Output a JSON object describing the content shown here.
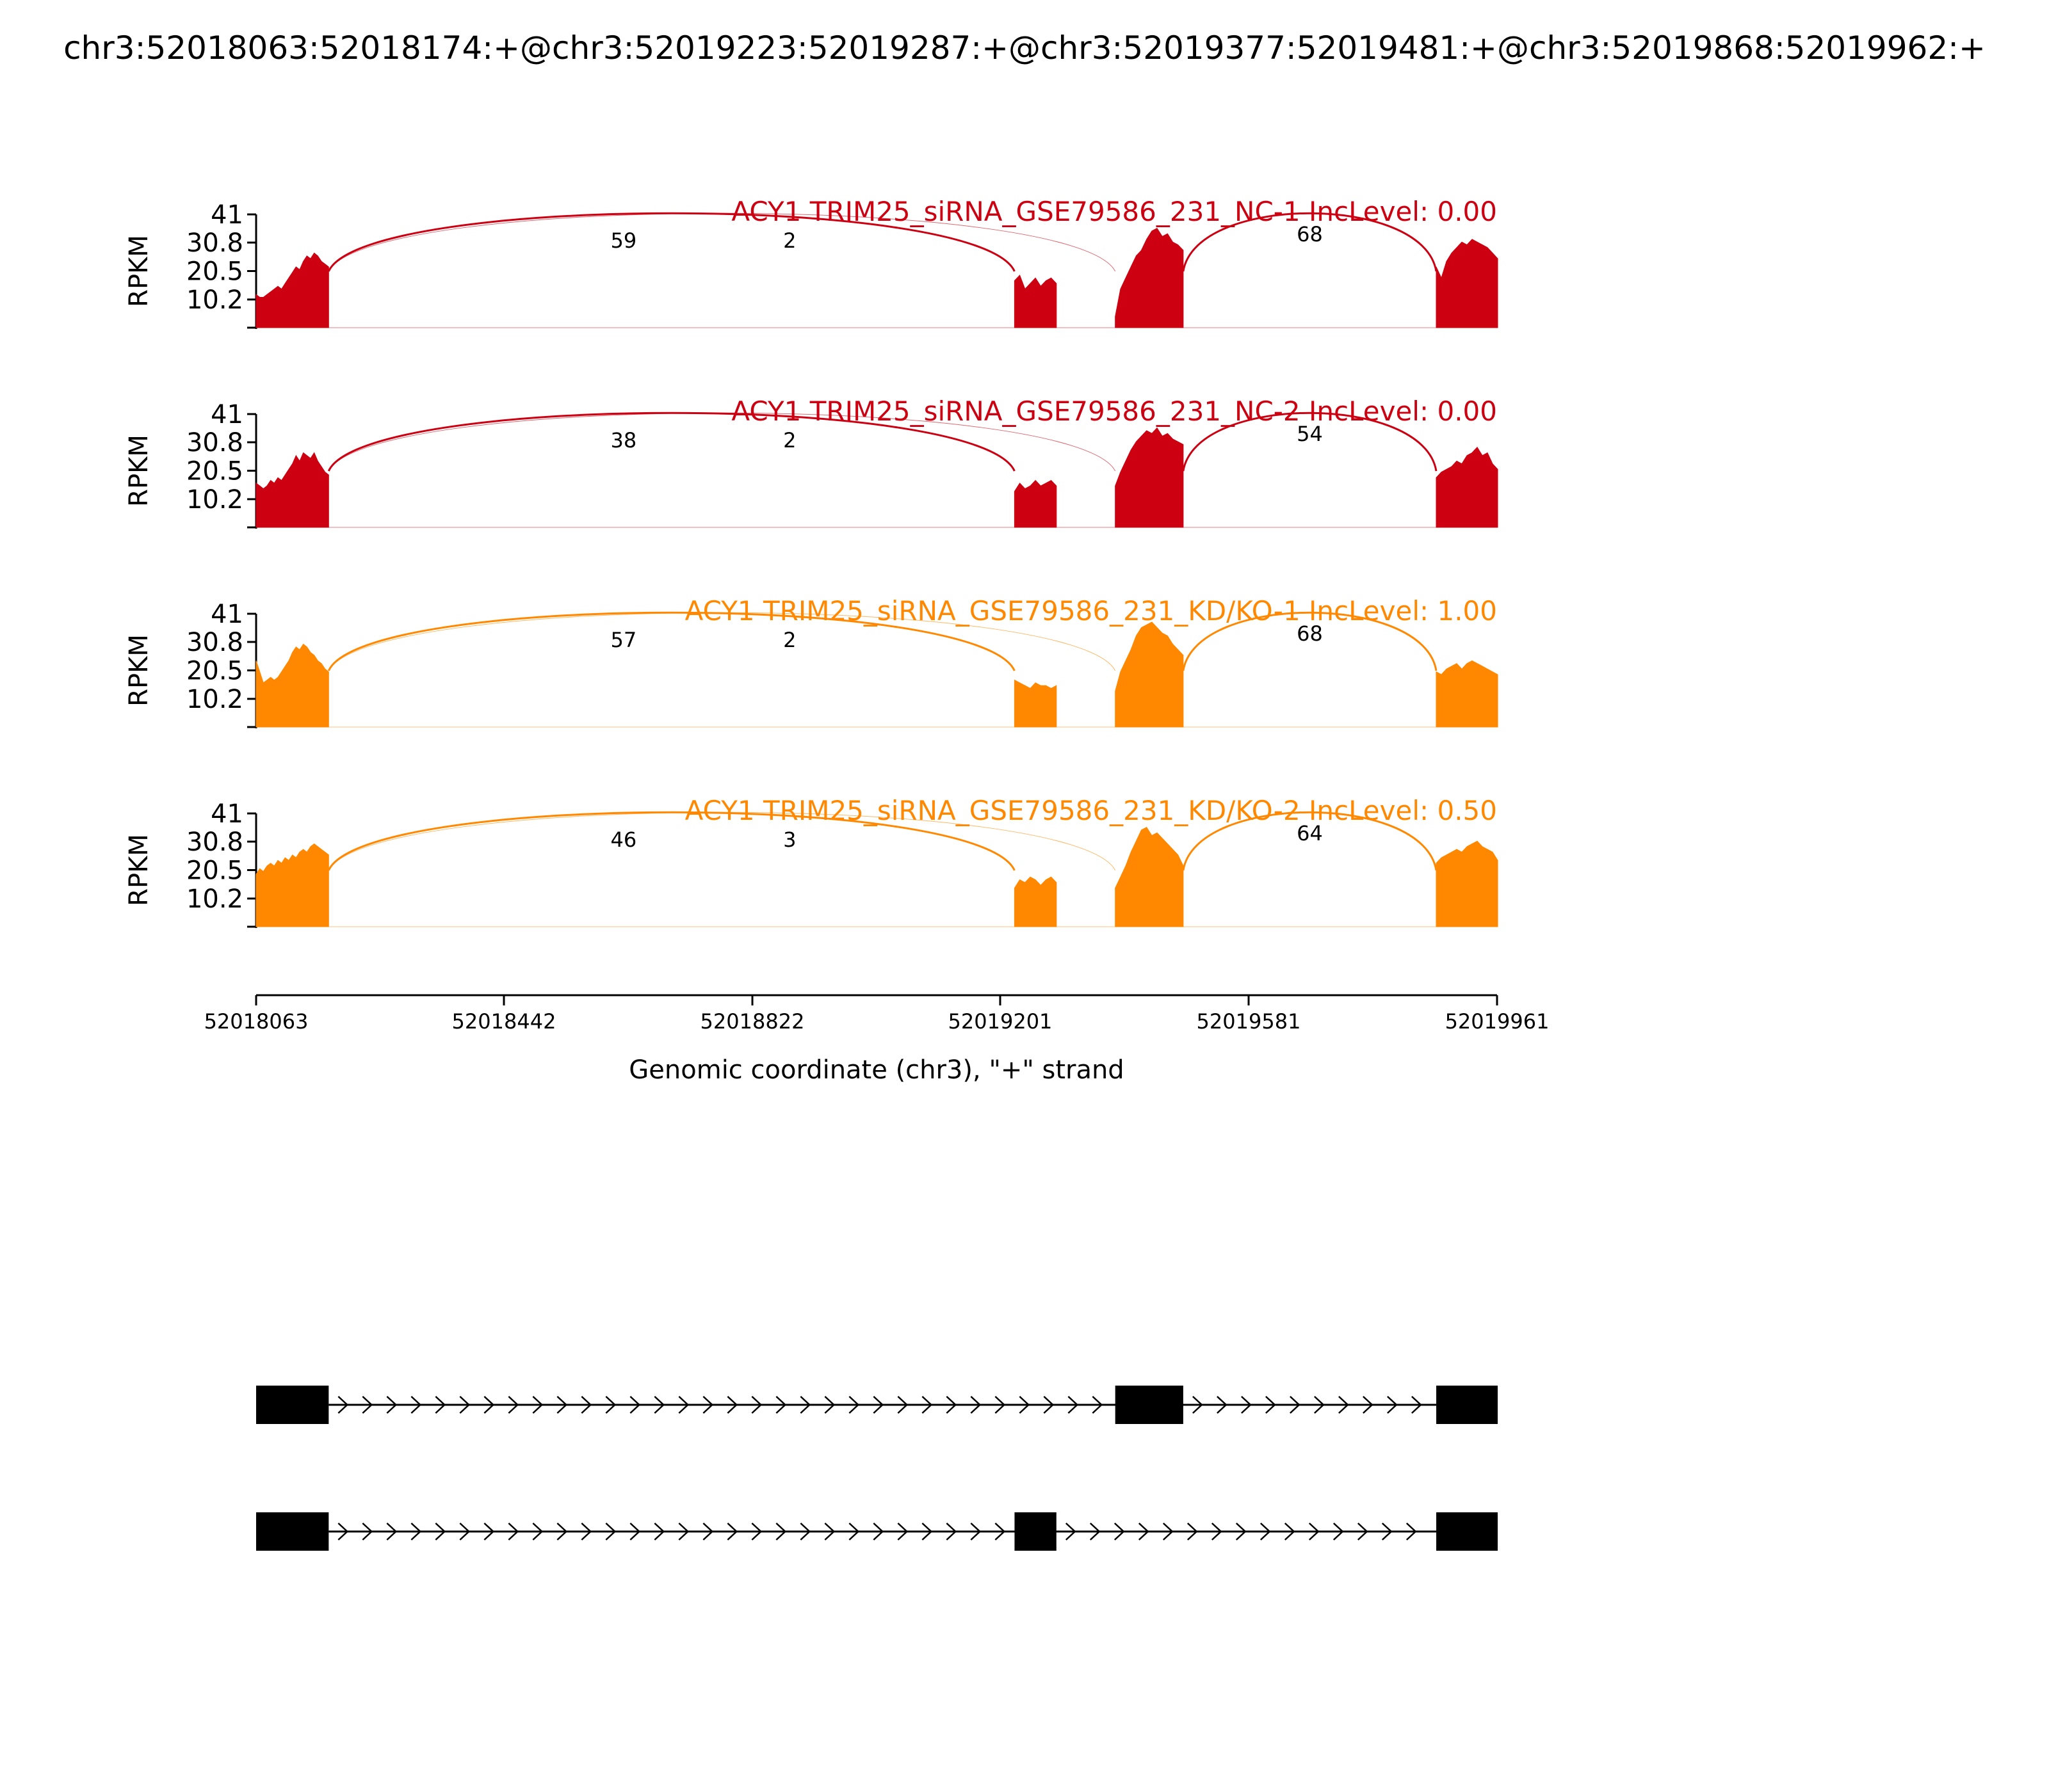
{
  "title": "chr3:52018063:52018174:+@chr3:52019223:52019287:+@chr3:52019377:52019481:+@chr3:52019868:52019962:+",
  "colors": {
    "nc": "#cc0011",
    "kd": "#ff8800",
    "axis": "#000000",
    "gene_model": "#000000"
  },
  "chart_data": {
    "type": "area",
    "title": "chr3:52018063:52018174:+@chr3:52019223:52019287:+@chr3:52019377:52019481:+@chr3:52019868:52019962:+",
    "xlabel": "Genomic coordinate (chr3), \"+\" strand",
    "ylabel": "RPKM",
    "xlim": [
      52018063,
      52019961
    ],
    "x_ticks": [
      52018063,
      52018442,
      52018822,
      52019201,
      52019581,
      52019961
    ],
    "x_tick_labels": [
      "52018063",
      "52018442",
      "52018822",
      "52019201",
      "52019581",
      "52019961"
    ],
    "ylim": [
      0,
      41
    ],
    "y_ticks": [
      10.2,
      20.5,
      30.8,
      41
    ],
    "y_tick_labels": [
      "10.2",
      "20.5",
      "30.8",
      "41"
    ],
    "exons": [
      {
        "start": 52018063,
        "end": 52018174
      },
      {
        "start": 52019223,
        "end": 52019287
      },
      {
        "start": 52019377,
        "end": 52019481
      },
      {
        "start": 52019868,
        "end": 52019962
      }
    ],
    "series": [
      {
        "name": "ACY1 TRIM25_siRNA_GSE79586_231_NC-1 IncLevel: 0.00",
        "color": "#cc0011",
        "exon_coverage": [
          {
            "start": 52018063,
            "end": 52018174,
            "profile": [
              12,
              11,
              11,
              12,
              13,
              14,
              15,
              14,
              16,
              18,
              20,
              22,
              21,
              24,
              26,
              25,
              27,
              26,
              24,
              23,
              22
            ]
          },
          {
            "start": 52019223,
            "end": 52019287,
            "profile": [
              17,
              19,
              14,
              16,
              18,
              15,
              17,
              18,
              16
            ]
          },
          {
            "start": 52019377,
            "end": 52019481,
            "profile": [
              4,
              14,
              18,
              22,
              26,
              28,
              32,
              35,
              36,
              33,
              34,
              31,
              30,
              28
            ]
          },
          {
            "start": 52019868,
            "end": 52019962,
            "profile": [
              22,
              18,
              24,
              27,
              29,
              31,
              30,
              32,
              31,
              30,
              29,
              27,
              25
            ]
          }
        ],
        "junctions": [
          {
            "start": 52018174,
            "end": 52019223,
            "count": "59"
          },
          {
            "start": 52018174,
            "end": 52019377,
            "count": "2"
          },
          {
            "start": 52019481,
            "end": 52019868,
            "count": "68"
          }
        ]
      },
      {
        "name": "ACY1 TRIM25_siRNA_GSE79586_231_NC-2 IncLevel: 0.00",
        "color": "#cc0011",
        "exon_coverage": [
          {
            "start": 52018063,
            "end": 52018174,
            "profile": [
              16,
              15,
              14,
              15,
              17,
              16,
              18,
              17,
              19,
              21,
              23,
              26,
              24,
              27,
              26,
              25,
              27,
              24,
              22,
              20,
              19
            ]
          },
          {
            "start": 52019223,
            "end": 52019287,
            "profile": [
              13,
              16,
              14,
              15,
              17,
              15,
              16,
              17,
              15
            ]
          },
          {
            "start": 52019377,
            "end": 52019481,
            "profile": [
              15,
              20,
              24,
              28,
              31,
              33,
              35,
              34,
              36,
              33,
              34,
              32,
              31,
              30
            ]
          },
          {
            "start": 52019868,
            "end": 52019962,
            "profile": [
              18,
              20,
              21,
              22,
              24,
              23,
              26,
              27,
              29,
              26,
              27,
              23,
              21
            ]
          }
        ],
        "junctions": [
          {
            "start": 52018174,
            "end": 52019223,
            "count": "38"
          },
          {
            "start": 52018174,
            "end": 52019377,
            "count": "2"
          },
          {
            "start": 52019481,
            "end": 52019868,
            "count": "54"
          }
        ]
      },
      {
        "name": "ACY1 TRIM25_siRNA_GSE79586_231_KD/KO-1 IncLevel: 1.00",
        "color": "#ff8800",
        "exon_coverage": [
          {
            "start": 52018063,
            "end": 52018174,
            "profile": [
              24,
              20,
              16,
              17,
              18,
              17,
              18,
              20,
              22,
              24,
              27,
              29,
              28,
              30,
              29,
              27,
              26,
              24,
              23,
              21,
              20
            ]
          },
          {
            "start": 52019223,
            "end": 52019287,
            "profile": [
              17,
              16,
              15,
              14,
              16,
              15,
              15,
              14,
              15
            ]
          },
          {
            "start": 52019377,
            "end": 52019481,
            "profile": [
              13,
              20,
              24,
              28,
              33,
              36,
              37,
              38,
              36,
              34,
              33,
              30,
              28,
              26
            ]
          },
          {
            "start": 52019868,
            "end": 52019962,
            "profile": [
              20,
              19,
              21,
              22,
              23,
              21,
              23,
              24,
              23,
              22,
              21,
              20,
              19
            ]
          }
        ],
        "junctions": [
          {
            "start": 52018174,
            "end": 52019223,
            "count": "57"
          },
          {
            "start": 52018174,
            "end": 52019377,
            "count": "2"
          },
          {
            "start": 52019481,
            "end": 52019868,
            "count": "68"
          }
        ]
      },
      {
        "name": "ACY1 TRIM25_siRNA_GSE79586_231_KD/KO-2 IncLevel: 0.50",
        "color": "#ff8800",
        "exon_coverage": [
          {
            "start": 52018063,
            "end": 52018174,
            "profile": [
              19,
              21,
              20,
              22,
              23,
              22,
              24,
              23,
              25,
              24,
              26,
              25,
              27,
              28,
              27,
              29,
              30,
              29,
              28,
              27,
              26
            ]
          },
          {
            "start": 52019223,
            "end": 52019287,
            "profile": [
              14,
              17,
              16,
              18,
              17,
              15,
              17,
              18,
              16
            ]
          },
          {
            "start": 52019377,
            "end": 52019481,
            "profile": [
              14,
              18,
              22,
              27,
              31,
              35,
              36,
              33,
              34,
              32,
              30,
              28,
              26,
              22
            ]
          },
          {
            "start": 52019868,
            "end": 52019962,
            "profile": [
              23,
              25,
              26,
              27,
              28,
              27,
              29,
              30,
              31,
              29,
              28,
              27,
              24
            ]
          }
        ],
        "junctions": [
          {
            "start": 52018174,
            "end": 52019223,
            "count": "46"
          },
          {
            "start": 52018174,
            "end": 52019377,
            "count": "3"
          },
          {
            "start": 52019481,
            "end": 52019868,
            "count": "64"
          }
        ]
      }
    ],
    "isoforms": [
      {
        "exons": [
          [
            52018063,
            52018174
          ],
          [
            52019377,
            52019481
          ],
          [
            52019868,
            52019962
          ]
        ]
      },
      {
        "exons": [
          [
            52018063,
            52018174
          ],
          [
            52019223,
            52019287
          ],
          [
            52019868,
            52019962
          ]
        ]
      }
    ]
  }
}
